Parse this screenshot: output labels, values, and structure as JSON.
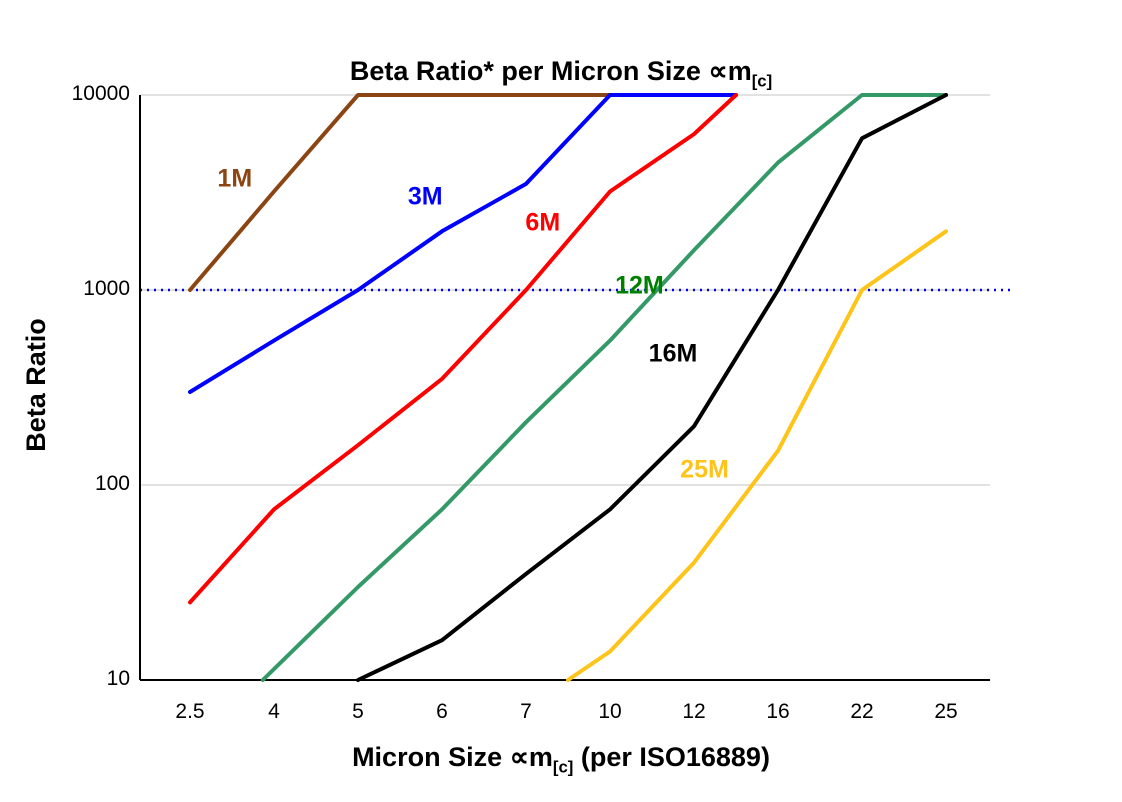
{
  "title": {
    "prefix": "Beta Ratio* per Micron Size ",
    "symbol": "∝m",
    "sub": "[c]"
  },
  "y_axis": {
    "label": "Beta Ratio",
    "ticks": [
      "10000",
      "1000",
      "100",
      "10"
    ]
  },
  "x_axis": {
    "label_prefix": "Micron Size ",
    "symbol": "∝m",
    "sub": "[c]",
    "label_suffix": " (per ISO16889)",
    "ticks": [
      "2.5",
      "4",
      "5",
      "6",
      "7",
      "10",
      "12",
      "16",
      "22",
      "25"
    ]
  },
  "chart_data": {
    "type": "line",
    "title": "Beta Ratio* per Micron Size ∝m[c]",
    "xlabel": "Micron Size ∝m[c] (per ISO16889)",
    "ylabel": "Beta Ratio",
    "x_categories": [
      2.5,
      4,
      5,
      6,
      7,
      10,
      12,
      16,
      22,
      25
    ],
    "y_scale": "log",
    "ylim": [
      10,
      10000
    ],
    "grid": "horizontal",
    "gridline_color": "#D9D9D9",
    "gridlines": [
      100,
      1000,
      10000
    ],
    "reference_line": {
      "y": 1000,
      "color": "#0000EE",
      "style": "dotted"
    },
    "series": [
      {
        "name": "1M",
        "color": "#8B4513",
        "label_color": "#8B4513",
        "label_pos": {
          "x": 3.3,
          "y": 3700
        },
        "points": [
          [
            2.5,
            1000
          ],
          [
            4,
            3200
          ],
          [
            5,
            10000
          ],
          [
            10,
            10000
          ]
        ]
      },
      {
        "name": "3M",
        "color": "#0000FF",
        "label_color": "#0000FF",
        "label_pos": {
          "x": 5.8,
          "y": 3000
        },
        "points": [
          [
            2.5,
            300
          ],
          [
            4,
            550
          ],
          [
            5,
            1000
          ],
          [
            6,
            2000
          ],
          [
            7,
            3500
          ],
          [
            10,
            10000
          ],
          [
            14,
            10000
          ]
        ]
      },
      {
        "name": "6M",
        "color": "#FF0000",
        "label_color": "#FF0000",
        "label_pos": {
          "x": 7.6,
          "y": 2200
        },
        "points": [
          [
            2.5,
            25
          ],
          [
            4,
            75
          ],
          [
            5,
            160
          ],
          [
            6,
            350
          ],
          [
            7,
            1000
          ],
          [
            10,
            3200
          ],
          [
            12,
            6300
          ],
          [
            14,
            10000
          ]
        ]
      },
      {
        "name": "12M",
        "color": "#339966",
        "label_color": "#008000",
        "label_pos": {
          "x": 10.7,
          "y": 1050
        },
        "points": [
          [
            3.8,
            10
          ],
          [
            5,
            30
          ],
          [
            6,
            75
          ],
          [
            7,
            210
          ],
          [
            10,
            550
          ],
          [
            12,
            1600
          ],
          [
            16,
            4500
          ],
          [
            22,
            10000
          ],
          [
            25,
            10000
          ]
        ]
      },
      {
        "name": "16M",
        "color": "#000000",
        "label_color": "#000000",
        "label_pos": {
          "x": 11.5,
          "y": 470
        },
        "points": [
          [
            5,
            10
          ],
          [
            6,
            16
          ],
          [
            7,
            35
          ],
          [
            10,
            75
          ],
          [
            12,
            200
          ],
          [
            16,
            1000
          ],
          [
            22,
            6000
          ],
          [
            25,
            10000
          ]
        ]
      },
      {
        "name": "25M",
        "color": "#FFC41A",
        "label_color": "#FFC41A",
        "label_pos": {
          "x": 12.5,
          "y": 120
        },
        "points": [
          [
            8.5,
            10
          ],
          [
            10,
            14
          ],
          [
            12,
            40
          ],
          [
            16,
            150
          ],
          [
            22,
            1000
          ],
          [
            25,
            2000
          ]
        ]
      }
    ]
  }
}
